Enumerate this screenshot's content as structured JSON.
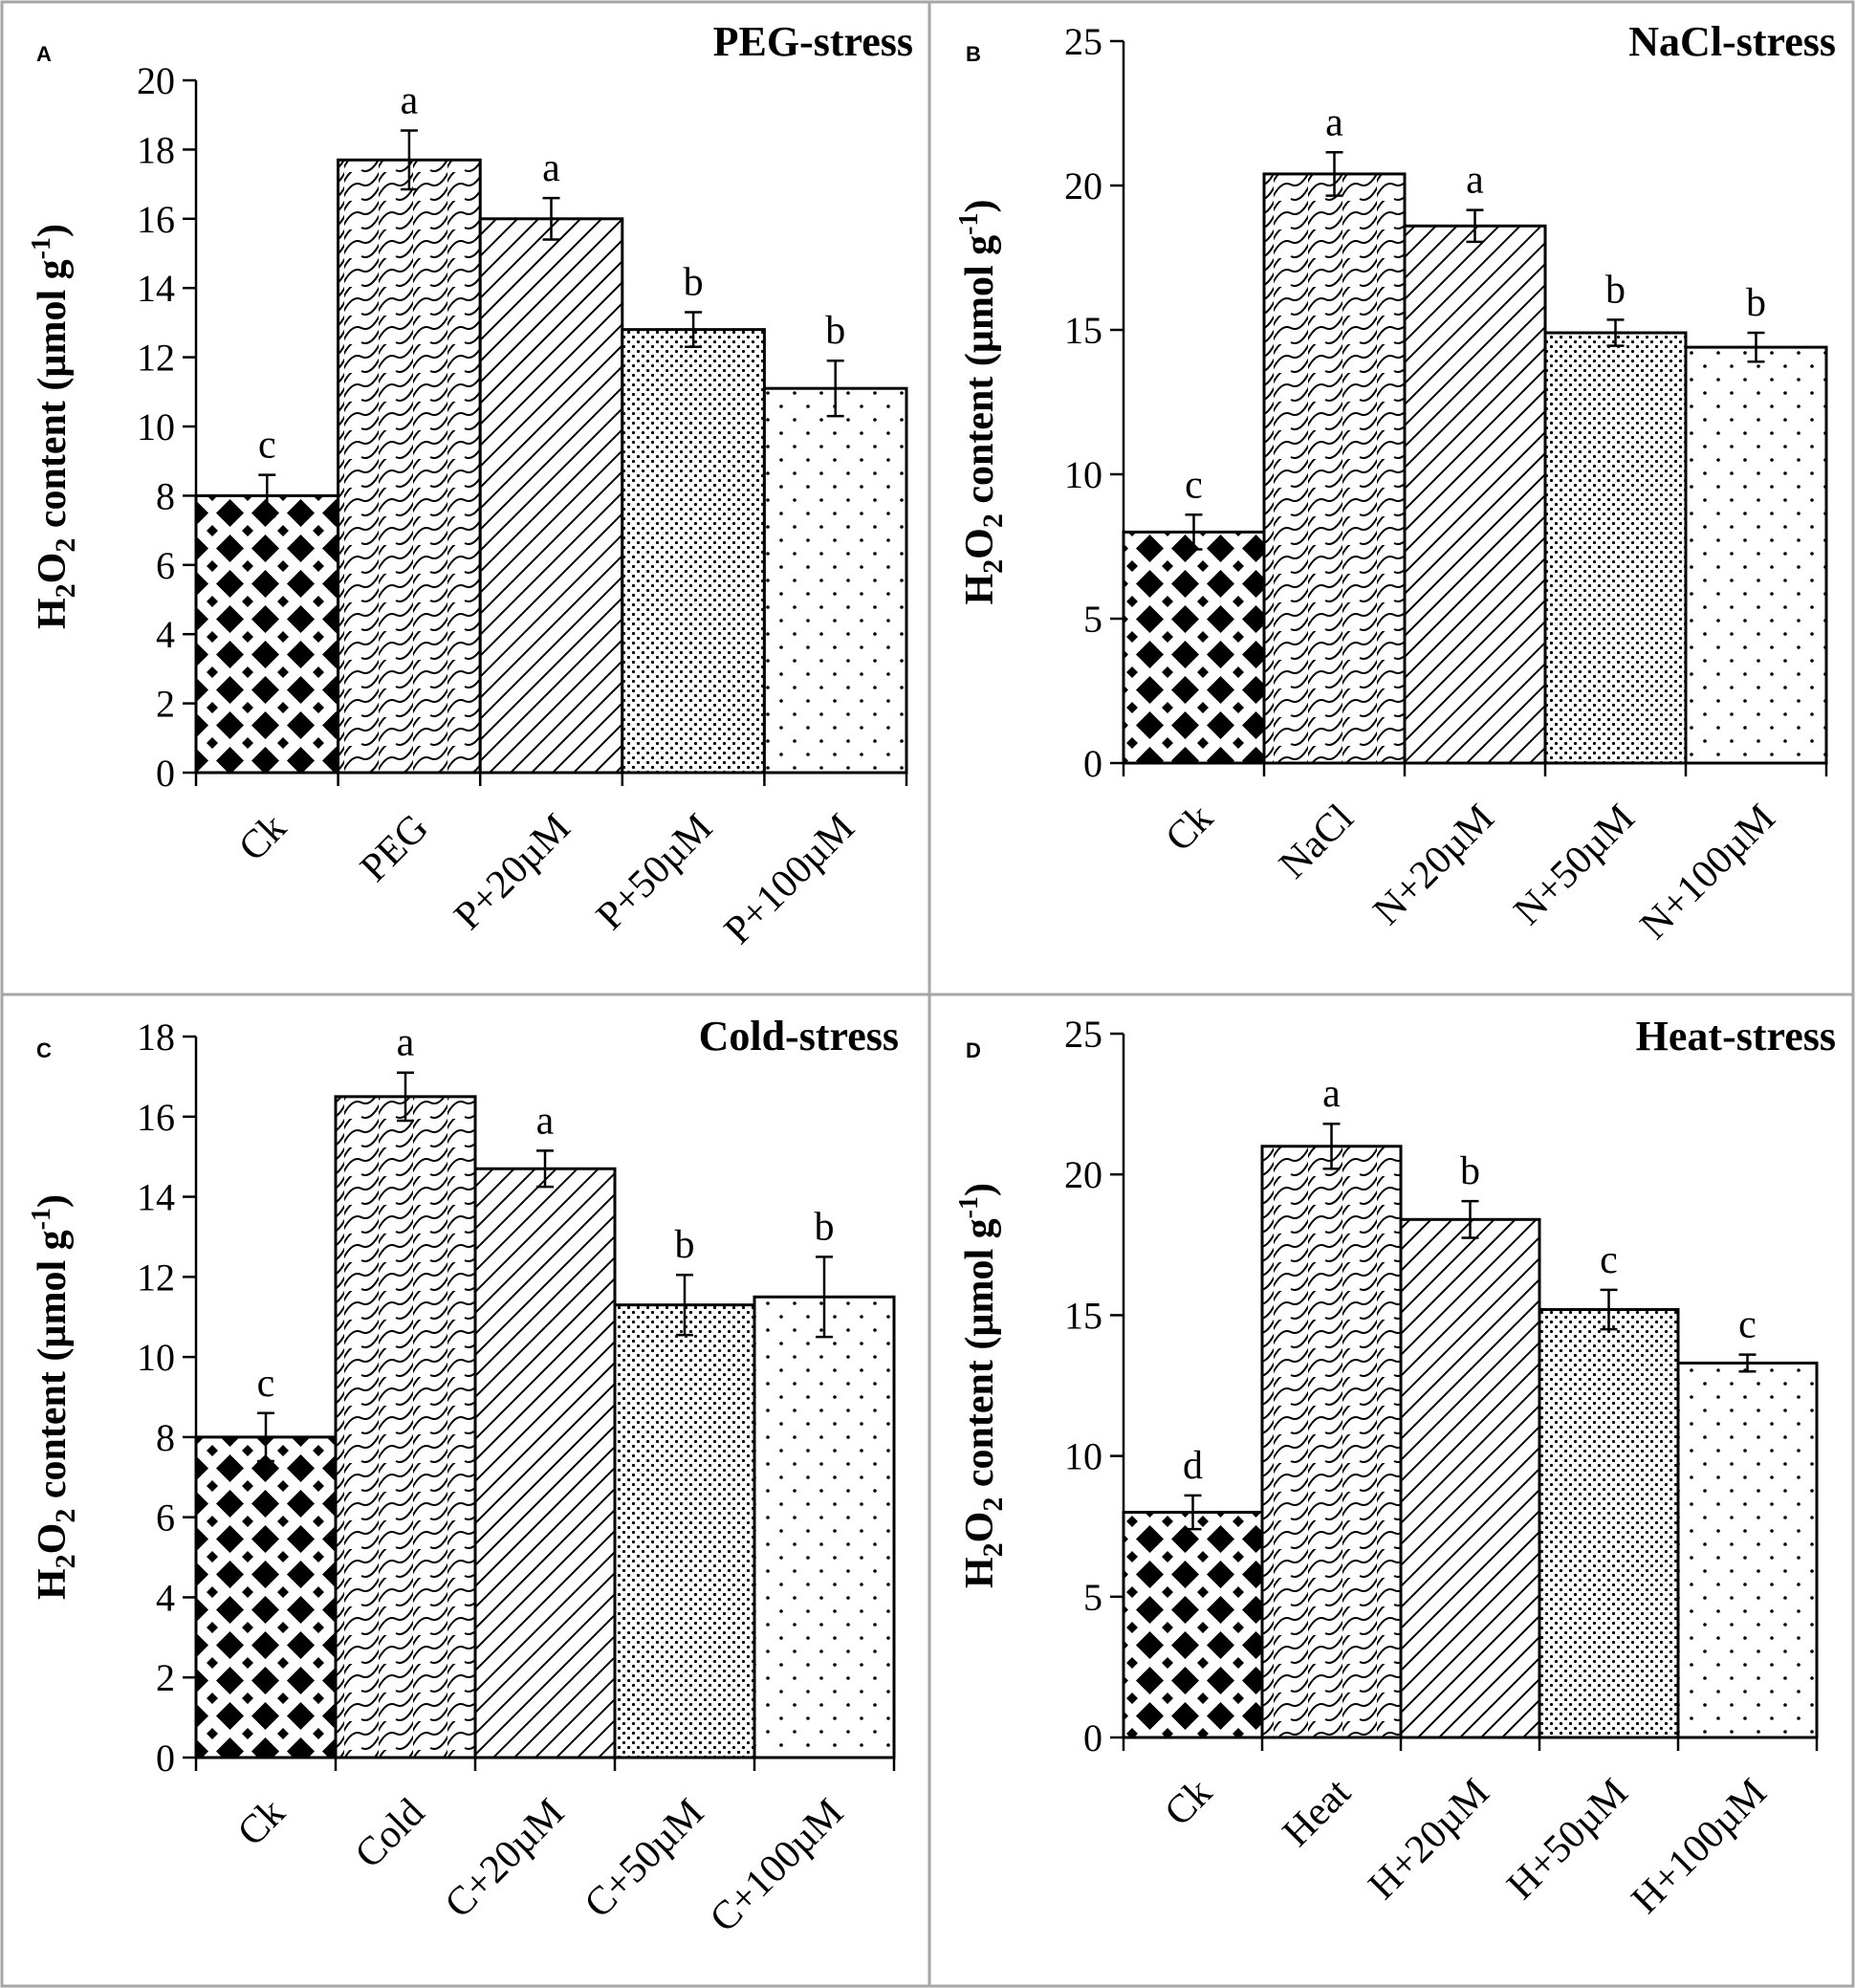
{
  "chart_data": [
    {
      "type": "bar",
      "panel": "A",
      "title": "PEG-stress",
      "ylabel": "H2O2 content (µmol g-1)",
      "ylabel_parts": {
        "main": "H",
        "sub1": "2",
        "mid": "O",
        "sub2": "2",
        "rest": " content (µmol g",
        "sup": "-1",
        "end": ")"
      },
      "ylim": [
        0,
        20
      ],
      "yticks": [
        0,
        2,
        4,
        6,
        8,
        10,
        12,
        14,
        16,
        18,
        20
      ],
      "categories": [
        "Ck",
        "PEG",
        "P+20µM",
        "P+50µM",
        "P+100µM"
      ],
      "values": [
        8.0,
        17.7,
        16.0,
        12.8,
        11.1
      ],
      "errors": [
        0.6,
        0.85,
        0.6,
        0.5,
        0.8
      ],
      "significance": [
        "c",
        "a",
        "a",
        "b",
        "b"
      ],
      "patterns": [
        "diamond",
        "wave",
        "diag",
        "dense-dot",
        "sparse-dot"
      ]
    },
    {
      "type": "bar",
      "panel": "B",
      "title": "NaCl-stress",
      "ylabel": "H2O2 content (µmol g-1)",
      "ylabel_parts": {
        "main": "H",
        "sub1": "2",
        "mid": "O",
        "sub2": "2",
        "rest": " content (µmol g",
        "sup": "-1",
        "end": ")"
      },
      "ylim": [
        0,
        25
      ],
      "yticks": [
        0,
        5,
        10,
        15,
        20,
        25
      ],
      "categories": [
        "Ck",
        "NaCl",
        "N+20µM",
        "N+50µM",
        "N+100µM"
      ],
      "values": [
        8.0,
        20.4,
        18.6,
        14.9,
        14.4
      ],
      "errors": [
        0.6,
        0.75,
        0.55,
        0.45,
        0.5
      ],
      "significance": [
        "c",
        "a",
        "a",
        "b",
        "b"
      ],
      "patterns": [
        "diamond",
        "wave",
        "diag",
        "dense-dot",
        "sparse-dot"
      ]
    },
    {
      "type": "bar",
      "panel": "C",
      "title": "Cold-stress",
      "ylabel": "H2O2 content (µmol g-1)",
      "ylabel_parts": {
        "main": "H",
        "sub1": "2",
        "mid": "O",
        "sub2": "2",
        "rest": " content (µmol g",
        "sup": "-1",
        "end": ")"
      },
      "ylim": [
        0,
        18
      ],
      "yticks": [
        0,
        2,
        4,
        6,
        8,
        10,
        12,
        14,
        16,
        18
      ],
      "categories": [
        "Ck",
        "Cold",
        "C+20µM",
        "C+50µM",
        "C+100µM"
      ],
      "values": [
        8.0,
        16.5,
        14.7,
        11.3,
        11.5
      ],
      "errors": [
        0.6,
        0.6,
        0.45,
        0.75,
        1.0
      ],
      "significance": [
        "c",
        "a",
        "a",
        "b",
        "b"
      ],
      "patterns": [
        "diamond",
        "wave",
        "diag",
        "dense-dot",
        "sparse-dot"
      ]
    },
    {
      "type": "bar",
      "panel": "D",
      "title": "Heat-stress",
      "ylabel": "H2O2 content (µmol g-1)",
      "ylabel_parts": {
        "main": "H",
        "sub1": "2",
        "mid": "O",
        "sub2": "2",
        "rest": " content (µmol g",
        "sup": "-1",
        "end": ")"
      },
      "ylim": [
        0,
        25
      ],
      "yticks": [
        0,
        5,
        10,
        15,
        20,
        25
      ],
      "categories": [
        "Ck",
        "Heat",
        "H+20µM",
        "H+50µM",
        "H+100µM"
      ],
      "values": [
        8.0,
        21.0,
        18.4,
        15.2,
        13.3
      ],
      "errors": [
        0.6,
        0.8,
        0.65,
        0.7,
        0.3
      ],
      "significance": [
        "d",
        "a",
        "b",
        "c",
        "c"
      ],
      "patterns": [
        "diamond",
        "wave",
        "diag",
        "dense-dot",
        "sparse-dot"
      ]
    }
  ]
}
